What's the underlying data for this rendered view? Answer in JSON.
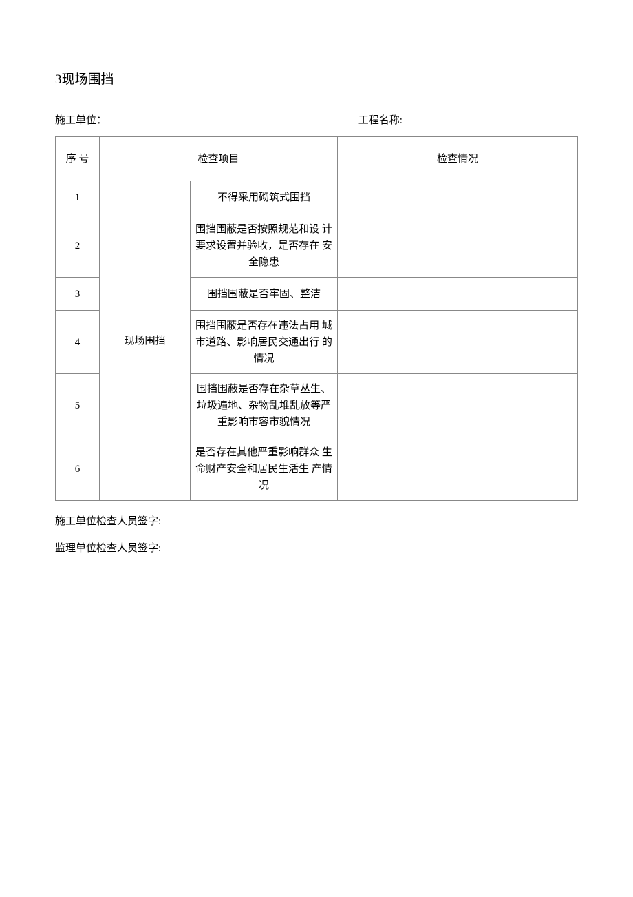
{
  "title": "3现场围挡",
  "meta": {
    "construction_unit_label": "施工单位：",
    "project_name_label": "工程名称:"
  },
  "table": {
    "headers": {
      "seq": "序 号",
      "check_item": "检查项目",
      "check_status": "检查情况"
    },
    "category": "现场围挡",
    "rows": [
      {
        "seq": "1",
        "item": "不得采用砌筑式围挡",
        "status": ""
      },
      {
        "seq": "2",
        "item": "围挡围蔽是否按照规范和设 计要求设置并验收，是否存在 安全隐患",
        "status": ""
      },
      {
        "seq": "3",
        "item": "围挡围蔽是否牢固、整洁",
        "status": ""
      },
      {
        "seq": "4",
        "item": "围挡围蔽是否存在违法占用 城市道路、影响居民交通出行 的情况",
        "status": ""
      },
      {
        "seq": "5",
        "item": "围挡围蔽是否存在杂草丛生、垃圾遍地、杂物乱堆乱放等严重影响市容市貌情况",
        "status": ""
      },
      {
        "seq": "6",
        "item": "是否存在其他严重影响群众 生命财产安全和居民生活生 产情况",
        "status": ""
      }
    ]
  },
  "signatures": {
    "construction_signer": "施工单位检查人员签字:",
    "supervision_signer": "监理单位检查人员签字:"
  },
  "colors": {
    "text": "#000000",
    "border": "#888888",
    "background": "#ffffff"
  }
}
